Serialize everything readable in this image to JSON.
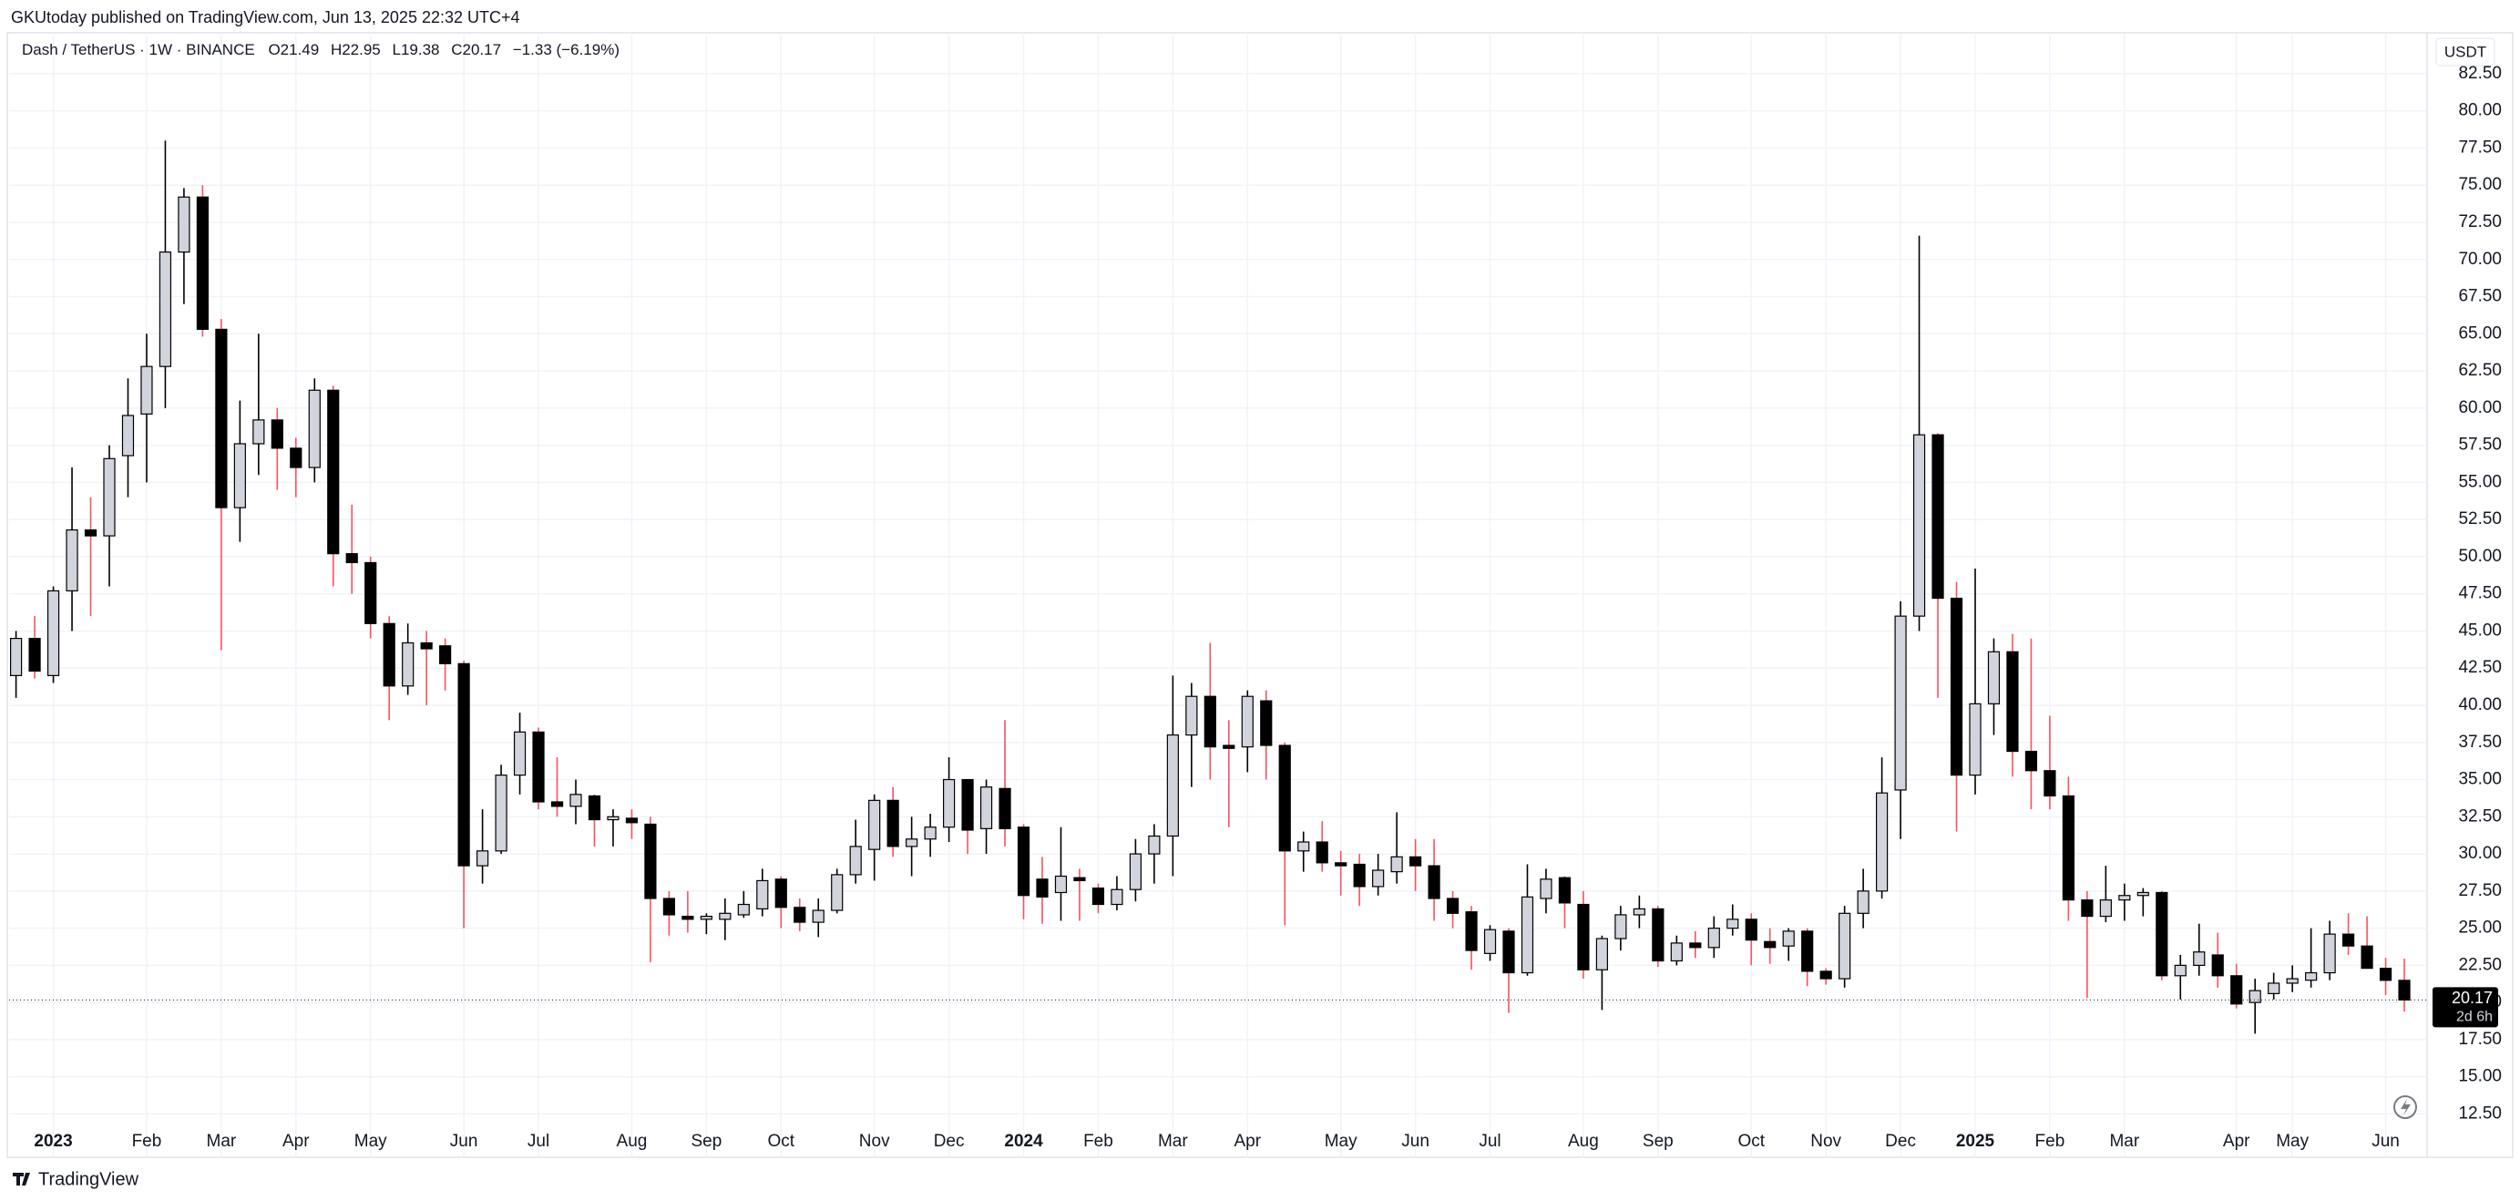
{
  "header": {
    "published": "GKUtoday published on TradingView.com, Jun 13, 2025 22:32 UTC+4",
    "symbol": "Dash / TetherUS · 1W · BINANCE",
    "open": "O21.49",
    "high": "H22.95",
    "low": "L19.38",
    "close": "C20.17",
    "change": "−1.33 (−6.19%)"
  },
  "chart_data": {
    "type": "candlestick",
    "currency": "USDT",
    "countdown": "2d 6h",
    "up_color": "#d1d4dc",
    "down_color": "#000000",
    "up_wick": "#000000",
    "down_wick": "#f7525f",
    "border_color": "#000000",
    "grid": true,
    "categories": [
      null,
      null,
      "2023",
      null,
      null,
      null,
      null,
      "Feb",
      null,
      null,
      null,
      "Mar",
      null,
      null,
      null,
      "Apr",
      null,
      null,
      null,
      "May",
      null,
      null,
      null,
      null,
      "Jun",
      null,
      null,
      null,
      "Jul",
      null,
      null,
      null,
      null,
      "Aug",
      null,
      null,
      null,
      "Sep",
      null,
      null,
      null,
      "Oct",
      null,
      null,
      null,
      null,
      "Nov",
      null,
      null,
      null,
      "Dec",
      null,
      null,
      null,
      "2024",
      null,
      null,
      null,
      "Feb",
      null,
      null,
      null,
      "Mar",
      null,
      null,
      null,
      "Apr",
      null,
      null,
      null,
      null,
      "May",
      null,
      null,
      null,
      "Jun",
      null,
      null,
      null,
      "Jul",
      null,
      null,
      null,
      null,
      "Aug",
      null,
      null,
      null,
      "Sep",
      null,
      null,
      null,
      null,
      "Oct",
      null,
      null,
      null,
      "Nov",
      null,
      null,
      null,
      "Dec",
      null,
      null,
      null,
      "2025",
      null,
      null,
      null,
      "Feb",
      null,
      null,
      null,
      "Mar",
      null,
      null,
      null,
      null,
      null,
      "Apr",
      null,
      null,
      "May",
      null,
      null,
      null,
      null,
      "Jun",
      null
    ],
    "open": [
      42.0,
      44.5,
      42.0,
      47.7,
      51.8,
      51.4,
      56.8,
      59.6,
      62.8,
      70.5,
      74.2,
      65.3,
      53.3,
      57.6,
      59.2,
      57.3,
      56.0,
      61.2,
      50.2,
      49.6,
      45.5,
      41.3,
      44.2,
      44.0,
      42.8,
      29.2,
      30.2,
      35.3,
      38.2,
      33.5,
      33.2,
      33.9,
      32.3,
      32.4,
      32.0,
      27.0,
      25.8,
      25.6,
      25.6,
      25.9,
      26.3,
      28.3,
      26.4,
      25.4,
      26.2,
      28.6,
      30.3,
      33.6,
      30.5,
      31.0,
      31.8,
      35.0,
      31.7,
      34.4,
      31.8,
      28.3,
      27.4,
      28.4,
      27.7,
      26.6,
      27.6,
      30.0,
      31.2,
      38.0,
      40.6,
      37.3,
      37.2,
      40.3,
      37.3,
      30.2,
      30.8,
      29.4,
      29.3,
      27.8,
      28.8,
      29.8,
      29.2,
      27.0,
      26.1,
      23.3,
      24.8,
      22.0,
      27.0,
      28.4,
      26.6,
      22.2,
      24.3,
      25.9,
      26.3,
      22.8,
      24.0,
      23.7,
      25.0,
      25.6,
      24.1,
      23.8,
      24.8,
      22.1,
      21.6,
      26.0,
      27.5,
      34.3,
      46.0,
      58.2,
      47.2,
      35.3,
      40.1,
      43.6,
      36.9,
      35.6,
      33.9,
      26.9,
      25.8,
      26.9,
      27.2,
      27.4,
      21.8,
      22.5,
      23.2,
      21.8,
      20.0,
      20.6,
      21.3,
      21.5,
      22.0,
      24.6,
      23.8,
      22.3,
      21.49
    ],
    "high": [
      45,
      46,
      48,
      56,
      54,
      57.5,
      62,
      65,
      78,
      74.8,
      75,
      66,
      60.5,
      65,
      60,
      58,
      62,
      61.5,
      53.5,
      50,
      46,
      45.5,
      45,
      44.5,
      43,
      33,
      36,
      39.5,
      38.5,
      36.5,
      35,
      34,
      33,
      33,
      32.5,
      27.5,
      27.5,
      26,
      27,
      27.5,
      29,
      28.5,
      27,
      27,
      29,
      32.3,
      34,
      34.5,
      32.5,
      32.7,
      36.5,
      35,
      35,
      39,
      32,
      29.8,
      31.8,
      29,
      28,
      28.5,
      31,
      32,
      42,
      41.5,
      44.2,
      39,
      41,
      41,
      37.5,
      31.5,
      32.2,
      30.2,
      30,
      30,
      32.8,
      31,
      31,
      27.5,
      26.5,
      25.2,
      25,
      29.3,
      29,
      28.5,
      27.5,
      24.5,
      26.5,
      27.2,
      26.5,
      24.5,
      24.8,
      25.8,
      26.6,
      26,
      25,
      25,
      25,
      22.3,
      26.5,
      29,
      36.5,
      47,
      71.6,
      58.3,
      48.3,
      49.2,
      44.5,
      44.8,
      44.5,
      39.3,
      35.2,
      27.5,
      29.2,
      28,
      27.7,
      27.5,
      23.2,
      25.3,
      24.7,
      22.6,
      21.6,
      22,
      22.5,
      25,
      25.5,
      26,
      25.8,
      23,
      22.95
    ],
    "low": [
      40.5,
      41.8,
      41.5,
      45,
      46,
      48,
      54,
      55,
      60,
      67,
      64.8,
      43.7,
      51,
      55.5,
      54.5,
      54,
      55,
      48,
      47.5,
      44.5,
      39,
      40.7,
      40,
      41,
      25,
      28,
      30,
      34,
      33,
      32.5,
      32,
      30.5,
      30.5,
      31,
      22.7,
      24.5,
      24.7,
      24.6,
      24.2,
      25.7,
      25.8,
      25,
      24.8,
      24.4,
      26,
      28,
      28.2,
      29.8,
      28.5,
      29.8,
      30.8,
      30,
      30,
      30.5,
      25.6,
      25.3,
      25.5,
      25.5,
      26,
      26.2,
      26.8,
      28,
      28.5,
      34.5,
      35,
      31.8,
      35.5,
      35,
      25.2,
      28.8,
      28.8,
      27.2,
      26.5,
      27.2,
      28,
      27.5,
      25.5,
      25,
      22.2,
      22.8,
      19.3,
      21.8,
      26,
      25,
      21.6,
      19.5,
      23.5,
      25,
      22.4,
      22.5,
      23,
      23,
      24.5,
      22.5,
      22.6,
      22.8,
      21.1,
      21.2,
      21,
      25,
      27,
      31,
      45,
      40.5,
      31.5,
      34,
      38,
      35.2,
      33,
      33,
      25.5,
      20.3,
      25.4,
      25.5,
      25.8,
      21.5,
      20.2,
      21.8,
      21,
      19.6,
      17.9,
      20.2,
      20.7,
      21,
      21.5,
      23.2,
      22.5,
      20.5,
      19.38
    ],
    "close": [
      44.5,
      42.3,
      47.7,
      51.8,
      51.4,
      56.6,
      59.5,
      62.8,
      70.5,
      74.2,
      65.3,
      53.3,
      57.6,
      59.2,
      57.3,
      56.0,
      61.2,
      50.2,
      49.6,
      45.5,
      41.3,
      44.2,
      43.8,
      42.8,
      29.2,
      30.2,
      35.3,
      38.2,
      33.5,
      33.2,
      34.0,
      32.3,
      32.5,
      32.1,
      27.0,
      25.9,
      25.6,
      25.8,
      26.0,
      26.6,
      28.2,
      26.4,
      25.4,
      26.2,
      28.6,
      30.5,
      33.6,
      30.5,
      31.0,
      31.8,
      35.0,
      31.6,
      34.5,
      31.7,
      27.2,
      27.1,
      28.5,
      28.2,
      26.6,
      27.6,
      30.0,
      31.2,
      38.0,
      40.6,
      37.2,
      37.1,
      40.6,
      37.3,
      30.2,
      30.8,
      29.4,
      29.2,
      27.8,
      28.9,
      29.8,
      29.2,
      27.0,
      26.0,
      23.5,
      24.9,
      22.0,
      27.1,
      28.3,
      26.7,
      22.2,
      24.3,
      25.9,
      26.3,
      22.8,
      24.0,
      23.7,
      25.0,
      25.6,
      24.2,
      23.7,
      24.8,
      22.1,
      21.6,
      26.0,
      27.5,
      34.1,
      46.0,
      58.2,
      47.2,
      35.3,
      40.1,
      43.6,
      36.9,
      35.6,
      33.9,
      26.9,
      25.8,
      26.9,
      27.2,
      27.4,
      21.8,
      22.5,
      23.4,
      21.8,
      19.9,
      20.8,
      21.3,
      21.6,
      22.0,
      24.6,
      23.8,
      22.3,
      21.49,
      20.17
    ],
    "ylim": [
      11.67,
      85.13
    ],
    "yticks": [
      {
        "value": 12.5,
        "label": "12.50"
      },
      {
        "value": 15,
        "label": "15.00"
      },
      {
        "value": 17.5,
        "label": "17.50"
      },
      {
        "value": 20,
        "label": "20.00"
      },
      {
        "value": 22.5,
        "label": "22.50"
      },
      {
        "value": 25,
        "label": "25.00"
      },
      {
        "value": 27.5,
        "label": "27.50"
      },
      {
        "value": 30,
        "label": "30.00"
      },
      {
        "value": 32.5,
        "label": "32.50"
      },
      {
        "value": 35,
        "label": "35.00"
      },
      {
        "value": 37.5,
        "label": "37.50"
      },
      {
        "value": 40,
        "label": "40.00"
      },
      {
        "value": 42.5,
        "label": "42.50"
      },
      {
        "value": 45,
        "label": "45.00"
      },
      {
        "value": 47.5,
        "label": "47.50"
      },
      {
        "value": 50,
        "label": "50.00"
      },
      {
        "value": 52.5,
        "label": "52.50"
      },
      {
        "value": 55,
        "label": "55.00"
      },
      {
        "value": 57.5,
        "label": "57.50"
      },
      {
        "value": 60,
        "label": "60.00"
      },
      {
        "value": 62.5,
        "label": "62.50"
      },
      {
        "value": 65,
        "label": "65.00"
      },
      {
        "value": 67.5,
        "label": "67.50"
      },
      {
        "value": 70,
        "label": "70.00"
      },
      {
        "value": 72.5,
        "label": "72.50"
      },
      {
        "value": 75,
        "label": "75.00"
      },
      {
        "value": 77.5,
        "label": "77.50"
      },
      {
        "value": 80,
        "label": "80.00"
      },
      {
        "value": 82.5,
        "label": "82.50"
      }
    ]
  },
  "footer": {
    "brand": "TradingView"
  }
}
